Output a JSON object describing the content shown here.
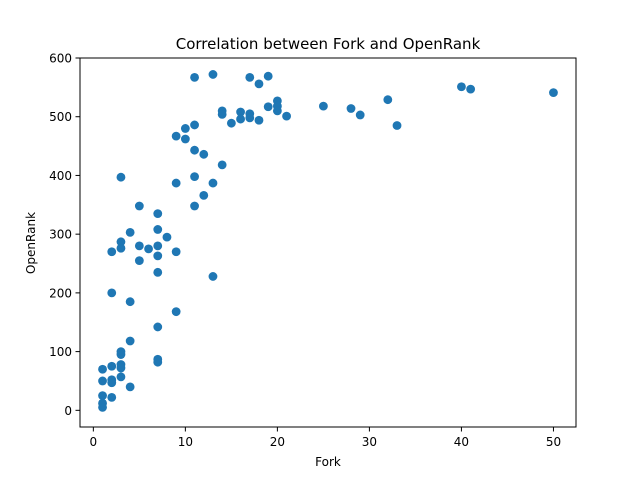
{
  "chart_data": {
    "type": "scatter",
    "title": "Correlation between Fork and OpenRank",
    "xlabel": "Fork",
    "ylabel": "OpenRank",
    "xlim": [
      -1.45,
      52.45
    ],
    "ylim": [
      -28.4,
      600
    ],
    "xticks": [
      0,
      10,
      20,
      30,
      40,
      50
    ],
    "yticks": [
      0,
      100,
      200,
      300,
      400,
      500,
      600
    ],
    "grid": false,
    "legend": false,
    "marker_color": "#1f77b4",
    "points": [
      {
        "x": 1,
        "y": 70
      },
      {
        "x": 1,
        "y": 50
      },
      {
        "x": 1,
        "y": 25
      },
      {
        "x": 1,
        "y": 12
      },
      {
        "x": 1,
        "y": 5
      },
      {
        "x": 2,
        "y": 75
      },
      {
        "x": 2,
        "y": 52
      },
      {
        "x": 2,
        "y": 47
      },
      {
        "x": 2,
        "y": 22
      },
      {
        "x": 2,
        "y": 200
      },
      {
        "x": 2,
        "y": 270
      },
      {
        "x": 3,
        "y": 100
      },
      {
        "x": 3,
        "y": 95
      },
      {
        "x": 3,
        "y": 78
      },
      {
        "x": 3,
        "y": 72
      },
      {
        "x": 3,
        "y": 57
      },
      {
        "x": 3,
        "y": 287
      },
      {
        "x": 3,
        "y": 276
      },
      {
        "x": 3,
        "y": 397
      },
      {
        "x": 4,
        "y": 118
      },
      {
        "x": 4,
        "y": 40
      },
      {
        "x": 4,
        "y": 185
      },
      {
        "x": 4,
        "y": 303
      },
      {
        "x": 5,
        "y": 348
      },
      {
        "x": 5,
        "y": 280
      },
      {
        "x": 5,
        "y": 255
      },
      {
        "x": 6,
        "y": 275
      },
      {
        "x": 7,
        "y": 335
      },
      {
        "x": 7,
        "y": 308
      },
      {
        "x": 7,
        "y": 280
      },
      {
        "x": 7,
        "y": 263
      },
      {
        "x": 7,
        "y": 235
      },
      {
        "x": 7,
        "y": 142
      },
      {
        "x": 7,
        "y": 87
      },
      {
        "x": 7,
        "y": 82
      },
      {
        "x": 8,
        "y": 295
      },
      {
        "x": 9,
        "y": 467
      },
      {
        "x": 9,
        "y": 387
      },
      {
        "x": 9,
        "y": 270
      },
      {
        "x": 9,
        "y": 168
      },
      {
        "x": 10,
        "y": 480
      },
      {
        "x": 10,
        "y": 462
      },
      {
        "x": 11,
        "y": 567
      },
      {
        "x": 11,
        "y": 486
      },
      {
        "x": 11,
        "y": 443
      },
      {
        "x": 11,
        "y": 398
      },
      {
        "x": 11,
        "y": 348
      },
      {
        "x": 12,
        "y": 436
      },
      {
        "x": 12,
        "y": 366
      },
      {
        "x": 13,
        "y": 572
      },
      {
        "x": 13,
        "y": 387
      },
      {
        "x": 13,
        "y": 228
      },
      {
        "x": 14,
        "y": 510
      },
      {
        "x": 14,
        "y": 504
      },
      {
        "x": 14,
        "y": 418
      },
      {
        "x": 15,
        "y": 489
      },
      {
        "x": 16,
        "y": 508
      },
      {
        "x": 16,
        "y": 496
      },
      {
        "x": 17,
        "y": 567
      },
      {
        "x": 17,
        "y": 505
      },
      {
        "x": 17,
        "y": 498
      },
      {
        "x": 18,
        "y": 556
      },
      {
        "x": 18,
        "y": 494
      },
      {
        "x": 19,
        "y": 569
      },
      {
        "x": 19,
        "y": 517
      },
      {
        "x": 20,
        "y": 527
      },
      {
        "x": 20,
        "y": 518
      },
      {
        "x": 20,
        "y": 510
      },
      {
        "x": 21,
        "y": 501
      },
      {
        "x": 25,
        "y": 518
      },
      {
        "x": 28,
        "y": 514
      },
      {
        "x": 29,
        "y": 503
      },
      {
        "x": 32,
        "y": 529
      },
      {
        "x": 33,
        "y": 485
      },
      {
        "x": 40,
        "y": 551
      },
      {
        "x": 41,
        "y": 547
      },
      {
        "x": 50,
        "y": 541
      }
    ]
  }
}
